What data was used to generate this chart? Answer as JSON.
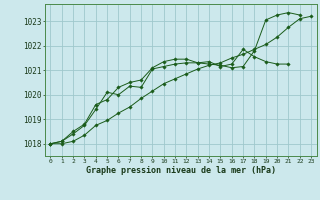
{
  "xlabel": "Graphe pression niveau de la mer (hPa)",
  "background_color": "#cce8ec",
  "grid_color": "#9fc8cc",
  "line_color": "#1a5c1a",
  "xlim": [
    -0.5,
    23.5
  ],
  "ylim": [
    1017.5,
    1023.7
  ],
  "xticks": [
    0,
    1,
    2,
    3,
    4,
    5,
    6,
    7,
    8,
    9,
    10,
    11,
    12,
    13,
    14,
    15,
    16,
    17,
    18,
    19,
    20,
    21,
    22,
    23
  ],
  "yticks": [
    1018,
    1019,
    1020,
    1021,
    1022,
    1023
  ],
  "series": [
    [
      1018.0,
      1018.1,
      1018.5,
      1018.8,
      1019.6,
      1019.8,
      1020.3,
      1020.5,
      1020.6,
      1021.1,
      1021.35,
      1021.45,
      1021.45,
      1021.3,
      1021.25,
      1021.2,
      1021.1,
      1021.15,
      1021.8,
      1023.05,
      1023.25,
      1023.35,
      1023.25,
      null
    ],
    [
      1018.0,
      1018.1,
      1018.4,
      1018.75,
      1019.4,
      1020.1,
      1020.0,
      1020.35,
      1020.3,
      1021.05,
      1021.15,
      1021.25,
      1021.3,
      1021.3,
      1021.35,
      1021.15,
      1021.25,
      1021.85,
      1021.55,
      1021.35,
      1021.25,
      1021.25,
      null,
      null
    ],
    [
      1018.0,
      1018.0,
      1018.1,
      1018.35,
      1018.75,
      1018.95,
      1019.25,
      1019.5,
      1019.85,
      1020.15,
      1020.45,
      1020.65,
      1020.85,
      1021.05,
      1021.2,
      1021.3,
      1021.5,
      1021.65,
      1021.85,
      1022.05,
      1022.35,
      1022.75,
      1023.1,
      1023.2
    ]
  ]
}
